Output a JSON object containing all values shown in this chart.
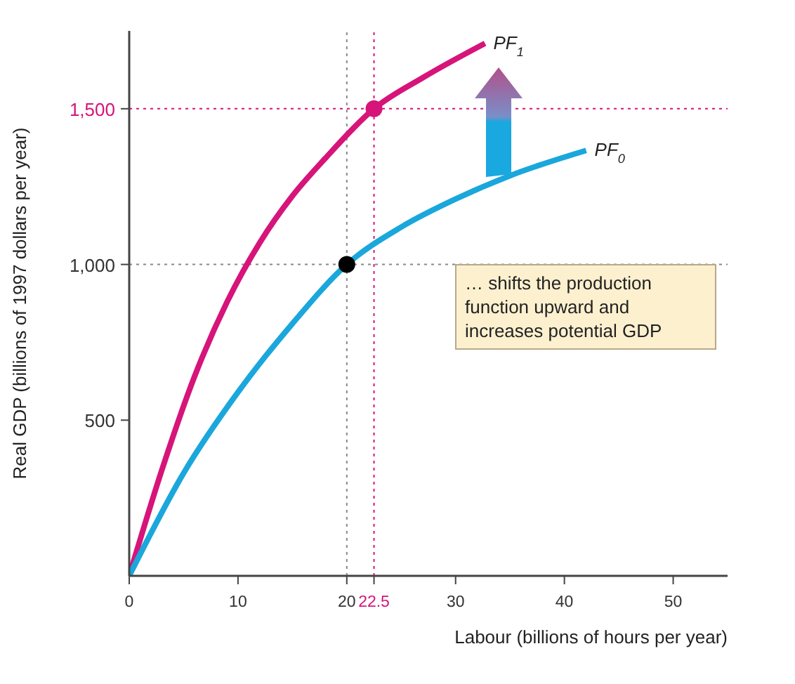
{
  "chart_data": {
    "type": "line",
    "xlabel": "Labour (billions of hours per year)",
    "ylabel": "Real GDP (billions of 1997 dollars per year)",
    "xlim": [
      0,
      55
    ],
    "ylim": [
      0,
      1750
    ],
    "xticks": [
      0,
      10,
      20,
      22.5,
      30,
      40,
      50
    ],
    "yticks": [
      500,
      {
        "value": 1000,
        "label": "1,000"
      },
      {
        "value": 1500,
        "label": "1,500"
      }
    ],
    "grid": false,
    "legend": false,
    "marker": "none",
    "line_style": "solid",
    "series": [
      {
        "name": "PF$_{1}$",
        "color": "#d6147a",
        "x": [
          0,
          3,
          6,
          9,
          12,
          15,
          18,
          22.5,
          27,
          32.7
        ],
        "values": [
          0,
          340,
          640,
          880,
          1070,
          1220,
          1340,
          1500,
          1600,
          1710
        ]
      },
      {
        "name": "PF$_{0}$",
        "color": "#1aa7dc",
        "x": [
          0,
          5,
          10,
          15,
          20,
          25,
          30,
          35,
          42
        ],
        "values": [
          0,
          330,
          590,
          810,
          1000,
          1120,
          1210,
          1285,
          1366
        ]
      },
      {
        "type": "scatter",
        "marker": "circle",
        "color": "#000000",
        "x": [
          20
        ],
        "values": [
          1000
        ]
      },
      {
        "type": "scatter",
        "marker": "circle",
        "color": "#d6147a",
        "x": [
          22.5
        ],
        "values": [
          1500
        ]
      }
    ],
    "ref_lines": [
      {
        "axis": "x",
        "value": 20,
        "color": "#888888",
        "line_style": "dotted"
      },
      {
        "axis": "x",
        "value": 22.5,
        "color": "#d6147a",
        "line_style": "dotted"
      },
      {
        "axis": "y",
        "value": 1000,
        "color": "#888888",
        "line_style": "dotted"
      },
      {
        "axis": "y",
        "value": 1500,
        "color": "#d6147a",
        "line_style": "dotted"
      }
    ],
    "annotations": [
      "… shifts the production function upward and increases potential GDP"
    ]
  }
}
